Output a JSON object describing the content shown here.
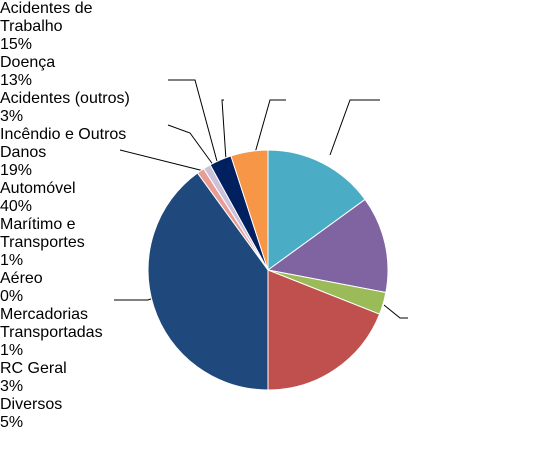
{
  "chart_data": {
    "type": "pie",
    "categories": [
      "Acidentes de Trabalho",
      "Doença",
      "Acidentes (outros)",
      "Incêndio e Outros Danos",
      "Automóvel",
      "Marítimo e Transportes",
      "Aéreo",
      "Mercadorias Transportadas",
      "RC Geral",
      "Diversos"
    ],
    "values": [
      15,
      13,
      3,
      19,
      40,
      1,
      0,
      1,
      3,
      5
    ],
    "value_labels": [
      "15%",
      "13%",
      "3%",
      "19%",
      "40%",
      "1%",
      "0%",
      "1%",
      "3%",
      "5%"
    ],
    "colors": [
      "#4bacc6",
      "#8064a2",
      "#9bbb59",
      "#c0504d",
      "#1f497d",
      "#e89c94",
      "#c6d9f1",
      "#ccc1da",
      "#002060",
      "#f79646"
    ]
  }
}
